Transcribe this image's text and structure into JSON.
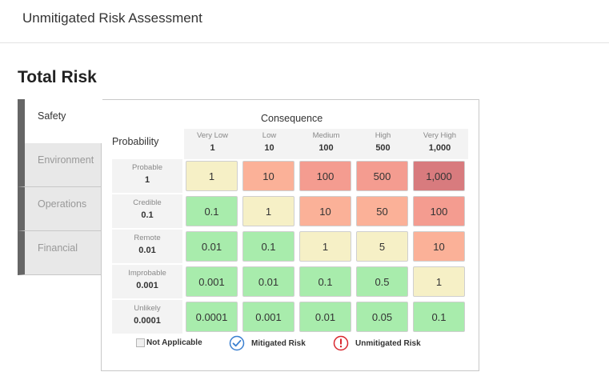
{
  "header": {
    "title": "Unmitigated Risk Assessment"
  },
  "section": {
    "title": "Total Risk"
  },
  "tabs": [
    {
      "label": "Safety",
      "active": true
    },
    {
      "label": "Environment",
      "active": false
    },
    {
      "label": "Operations",
      "active": false
    },
    {
      "label": "Financial",
      "active": false
    }
  ],
  "matrix": {
    "consequence_label": "Consequence",
    "probability_label": "Probability",
    "columns": [
      {
        "name": "Very Low",
        "value": "1"
      },
      {
        "name": "Low",
        "value": "10"
      },
      {
        "name": "Medium",
        "value": "100"
      },
      {
        "name": "High",
        "value": "500"
      },
      {
        "name": "Very High",
        "value": "1,000"
      }
    ],
    "rows": [
      {
        "name": "Probable",
        "value": "1",
        "cells": [
          "1",
          "10",
          "100",
          "500",
          "1,000"
        ],
        "colors": [
          "#f6f0c6",
          "#fbb198",
          "#f49c90",
          "#f49c90",
          "#d87b7e"
        ]
      },
      {
        "name": "Credible",
        "value": "0.1",
        "cells": [
          "0.1",
          "1",
          "10",
          "50",
          "100"
        ],
        "colors": [
          "#a8ecac",
          "#f6f0c6",
          "#fbb198",
          "#fbb198",
          "#f49c90"
        ]
      },
      {
        "name": "Remote",
        "value": "0.01",
        "cells": [
          "0.01",
          "0.1",
          "1",
          "5",
          "10"
        ],
        "colors": [
          "#a8ecac",
          "#a8ecac",
          "#f6f0c6",
          "#f6f0c6",
          "#fbb198"
        ]
      },
      {
        "name": "Improbable",
        "value": "0.001",
        "cells": [
          "0.001",
          "0.01",
          "0.1",
          "0.5",
          "1"
        ],
        "colors": [
          "#a8ecac",
          "#a8ecac",
          "#a8ecac",
          "#a8ecac",
          "#f6f0c6"
        ]
      },
      {
        "name": "Unlikely",
        "value": "0.0001",
        "cells": [
          "0.0001",
          "0.001",
          "0.01",
          "0.05",
          "0.1"
        ],
        "colors": [
          "#a8ecac",
          "#a8ecac",
          "#a8ecac",
          "#a8ecac",
          "#a8ecac"
        ]
      }
    ]
  },
  "legend": {
    "not_applicable": "Not Applicable",
    "mitigated": "Mitigated Risk",
    "unmitigated": "Unmitigated Risk",
    "mitigated_color": "#3a7fd0",
    "unmitigated_color": "#d9272e"
  }
}
